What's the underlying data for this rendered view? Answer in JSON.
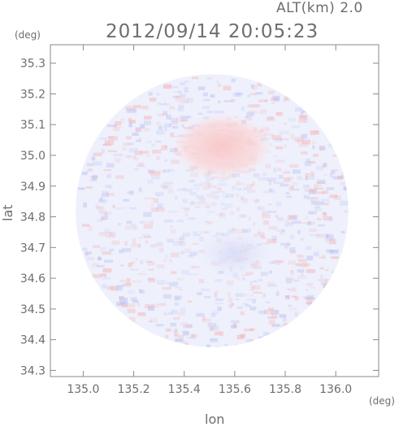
{
  "header": {
    "alt_label": "ALT(km) 2.0",
    "timestamp": "2012/09/14 20:05:23"
  },
  "axes": {
    "y_unit": "(deg)",
    "x_unit": "(deg)",
    "y_label": "lat",
    "x_label": "lon"
  },
  "chart_data": {
    "type": "heatmap",
    "title": "2012/09/14 20:05:23",
    "xlabel": "lon",
    "ylabel": "lat",
    "xlim": [
      134.87,
      136.17
    ],
    "ylim": [
      34.28,
      35.36
    ],
    "x_ticks": [
      135.0,
      135.2,
      135.4,
      135.6,
      135.8,
      136.0
    ],
    "y_ticks": [
      34.3,
      34.4,
      34.5,
      34.6,
      34.7,
      34.8,
      34.9,
      35.0,
      35.1,
      35.2,
      35.3
    ],
    "x_tick_labels": [
      "135.0",
      "135.2",
      "135.4",
      "135.6",
      "135.8",
      "136.0"
    ],
    "y_tick_labels": [
      "34.3",
      "34.4",
      "34.5",
      "34.6",
      "34.7",
      "34.8",
      "34.9",
      "35.0",
      "35.1",
      "35.2",
      "35.3"
    ],
    "domain": {
      "shape": "circle",
      "center_lon": 135.51,
      "center_lat": 34.82,
      "radius_deg": 0.54
    },
    "regions": [
      {
        "name": "positive-core",
        "center_lon": 135.55,
        "center_lat": 35.03,
        "extent_deg": 0.2,
        "color": "#f8c8c8"
      },
      {
        "name": "negative-weak",
        "center_lon": 135.6,
        "center_lat": 34.68,
        "extent_deg": 0.15,
        "color": "#d8dcf6"
      }
    ],
    "colors": {
      "positive": "#f4b4b4",
      "negative": "#b8c0f0",
      "neutral": "#eef0fc"
    }
  }
}
